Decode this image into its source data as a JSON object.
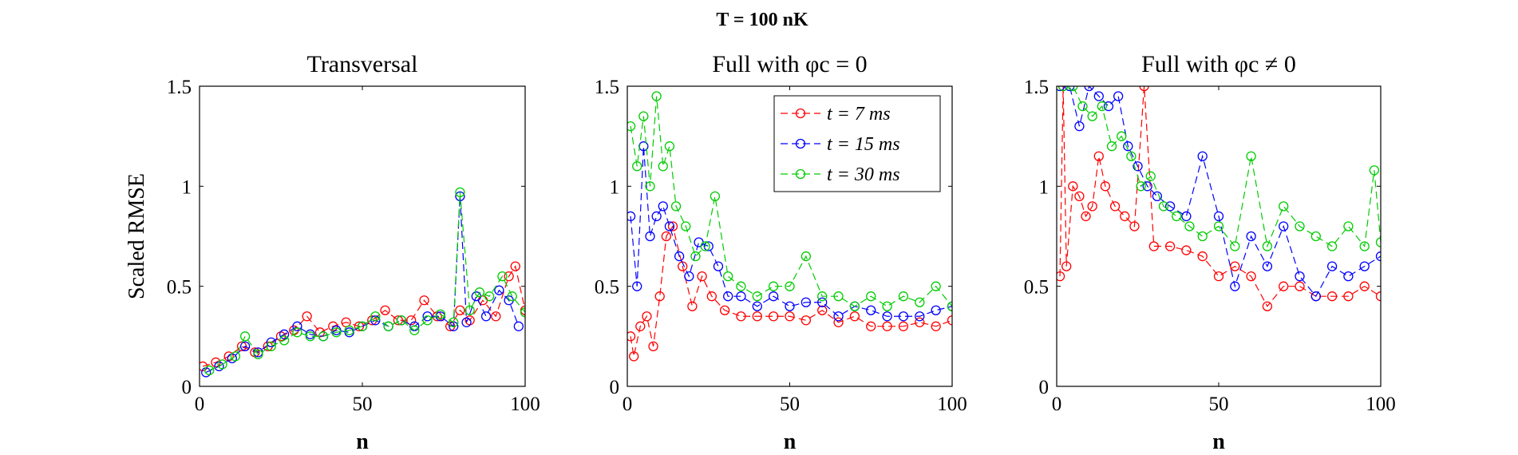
{
  "figure": {
    "title": "T = 100 nK"
  },
  "chart_data": [
    {
      "type": "line",
      "title": "Transversal",
      "xlabel": "n",
      "ylabel": "Scaled RMSE",
      "xlim": [
        0,
        100
      ],
      "ylim": [
        0,
        1.5
      ],
      "xticks": [
        0,
        50,
        100
      ],
      "yticks": [
        0,
        0.5,
        1,
        1.5
      ],
      "legend": null,
      "series": [
        {
          "name": "t = 7 ms",
          "color": "#ff0000",
          "x": [
            1,
            5,
            9,
            13,
            17,
            21,
            25,
            29,
            33,
            37,
            41,
            45,
            49,
            53,
            57,
            61,
            65,
            69,
            73,
            77,
            80,
            83,
            87,
            91,
            95,
            97,
            100
          ],
          "y": [
            0.1,
            0.12,
            0.15,
            0.2,
            0.17,
            0.2,
            0.25,
            0.28,
            0.35,
            0.27,
            0.3,
            0.32,
            0.3,
            0.33,
            0.38,
            0.33,
            0.33,
            0.43,
            0.35,
            0.3,
            0.38,
            0.33,
            0.43,
            0.35,
            0.55,
            0.6,
            0.38
          ]
        },
        {
          "name": "t = 15 ms",
          "color": "#0000ff",
          "x": [
            2,
            6,
            10,
            14,
            18,
            22,
            26,
            30,
            34,
            38,
            42,
            46,
            50,
            54,
            58,
            62,
            66,
            70,
            74,
            78,
            80,
            82,
            85,
            88,
            92,
            95,
            98
          ],
          "y": [
            0.07,
            0.1,
            0.14,
            0.2,
            0.17,
            0.22,
            0.26,
            0.3,
            0.26,
            0.25,
            0.28,
            0.27,
            0.3,
            0.33,
            0.3,
            0.33,
            0.3,
            0.35,
            0.35,
            0.3,
            0.95,
            0.32,
            0.45,
            0.35,
            0.48,
            0.43,
            0.3
          ]
        },
        {
          "name": "t = 30 ms",
          "color": "#00cc00",
          "x": [
            3,
            7,
            11,
            14,
            18,
            22,
            26,
            30,
            34,
            38,
            42,
            46,
            50,
            54,
            58,
            62,
            66,
            70,
            74,
            78,
            80,
            83,
            86,
            89,
            93,
            96,
            100
          ],
          "y": [
            0.08,
            0.11,
            0.15,
            0.25,
            0.16,
            0.2,
            0.23,
            0.27,
            0.25,
            0.25,
            0.27,
            0.28,
            0.3,
            0.35,
            0.3,
            0.33,
            0.28,
            0.33,
            0.36,
            0.32,
            0.97,
            0.38,
            0.47,
            0.45,
            0.55,
            0.45,
            0.37
          ]
        }
      ]
    },
    {
      "type": "line",
      "title": "Full with φc = 0",
      "xlabel": "n",
      "ylabel": "",
      "xlim": [
        0,
        100
      ],
      "ylim": [
        0,
        1.5
      ],
      "xticks": [
        0,
        50,
        100
      ],
      "yticks": [
        0,
        0.5,
        1,
        1.5
      ],
      "legend": "top-right",
      "series": [
        {
          "name": "t = 7 ms",
          "color": "#ff0000",
          "x": [
            1,
            2,
            4,
            6,
            8,
            10,
            12,
            14,
            17,
            20,
            23,
            26,
            30,
            35,
            40,
            45,
            50,
            55,
            60,
            65,
            70,
            75,
            80,
            85,
            90,
            95,
            100
          ],
          "y": [
            0.25,
            0.15,
            0.3,
            0.35,
            0.2,
            0.45,
            0.75,
            0.8,
            0.6,
            0.4,
            0.55,
            0.45,
            0.38,
            0.35,
            0.35,
            0.35,
            0.35,
            0.33,
            0.38,
            0.32,
            0.35,
            0.3,
            0.3,
            0.3,
            0.32,
            0.3,
            0.33
          ]
        },
        {
          "name": "t = 15 ms",
          "color": "#0000ff",
          "x": [
            1,
            3,
            5,
            7,
            9,
            11,
            13,
            16,
            19,
            22,
            25,
            28,
            31,
            35,
            40,
            45,
            50,
            55,
            60,
            65,
            70,
            75,
            80,
            85,
            90,
            95,
            100
          ],
          "y": [
            0.85,
            0.5,
            1.2,
            0.75,
            0.85,
            0.9,
            0.8,
            0.65,
            0.55,
            0.72,
            0.7,
            0.6,
            0.45,
            0.45,
            0.4,
            0.45,
            0.4,
            0.42,
            0.42,
            0.35,
            0.4,
            0.38,
            0.35,
            0.35,
            0.35,
            0.38,
            0.4
          ]
        },
        {
          "name": "t = 30 ms",
          "color": "#00cc00",
          "x": [
            1,
            3,
            5,
            7,
            9,
            11,
            13,
            15,
            18,
            21,
            24,
            27,
            31,
            35,
            40,
            45,
            50,
            55,
            60,
            65,
            70,
            75,
            80,
            85,
            90,
            95,
            100
          ],
          "y": [
            1.3,
            1.1,
            1.35,
            1.0,
            1.45,
            1.1,
            1.2,
            0.9,
            0.8,
            0.65,
            0.7,
            0.95,
            0.55,
            0.5,
            0.45,
            0.5,
            0.5,
            0.65,
            0.45,
            0.45,
            0.4,
            0.45,
            0.4,
            0.45,
            0.42,
            0.5,
            0.4
          ]
        }
      ]
    },
    {
      "type": "line",
      "title": "Full with φc ≠ 0",
      "xlabel": "n",
      "ylabel": "",
      "xlim": [
        0,
        100
      ],
      "ylim": [
        0,
        1.5
      ],
      "xticks": [
        0,
        50,
        100
      ],
      "yticks": [
        0,
        0.5,
        1,
        1.5
      ],
      "legend": null,
      "series": [
        {
          "name": "t = 7 ms",
          "color": "#ff0000",
          "x": [
            1,
            2,
            3,
            5,
            7,
            9,
            11,
            13,
            15,
            18,
            21,
            24,
            27,
            30,
            35,
            40,
            45,
            50,
            55,
            60,
            65,
            70,
            75,
            80,
            85,
            90,
            95,
            100
          ],
          "y": [
            0.55,
            1.5,
            0.6,
            1.0,
            0.95,
            0.85,
            0.9,
            1.15,
            1.0,
            0.9,
            0.85,
            0.8,
            1.5,
            0.7,
            0.7,
            0.68,
            0.65,
            0.55,
            0.6,
            0.55,
            0.4,
            0.5,
            0.5,
            0.45,
            0.45,
            0.45,
            0.5,
            0.45
          ]
        },
        {
          "name": "t = 15 ms",
          "color": "#0000ff",
          "x": [
            1,
            4,
            7,
            10,
            13,
            16,
            19,
            22,
            25,
            28,
            31,
            35,
            40,
            45,
            50,
            55,
            60,
            65,
            70,
            75,
            80,
            85,
            90,
            95,
            100
          ],
          "y": [
            1.5,
            1.5,
            1.3,
            1.5,
            1.45,
            1.4,
            1.45,
            1.2,
            1.1,
            1.0,
            0.95,
            0.9,
            0.85,
            1.15,
            0.85,
            0.5,
            0.75,
            0.6,
            0.8,
            0.55,
            0.45,
            0.6,
            0.55,
            0.6,
            0.65
          ]
        },
        {
          "name": "t = 30 ms",
          "color": "#00cc00",
          "x": [
            2,
            5,
            8,
            11,
            14,
            17,
            20,
            23,
            26,
            29,
            33,
            37,
            41,
            45,
            50,
            55,
            60,
            65,
            70,
            75,
            80,
            85,
            90,
            95,
            98,
            100
          ],
          "y": [
            1.5,
            1.5,
            1.4,
            1.35,
            1.4,
            1.2,
            1.25,
            1.15,
            1.0,
            1.05,
            0.9,
            0.85,
            0.8,
            0.75,
            0.8,
            0.7,
            1.15,
            0.7,
            0.9,
            0.8,
            0.75,
            0.7,
            0.8,
            0.7,
            1.08,
            0.72
          ]
        }
      ]
    }
  ]
}
